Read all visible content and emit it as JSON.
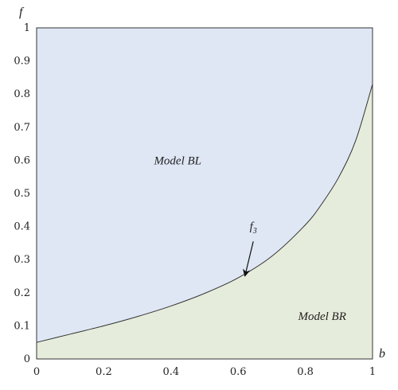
{
  "chart_data": {
    "type": "area",
    "x_var": "b",
    "y_var": "f",
    "xlim": [
      0,
      1
    ],
    "ylim": [
      0,
      1
    ],
    "x_ticks": [
      "0",
      "0.2",
      "0.4",
      "0.6",
      "0.8",
      "1"
    ],
    "y_ticks": [
      "0",
      "0.1",
      "0.2",
      "0.3",
      "0.4",
      "0.5",
      "0.6",
      "0.7",
      "0.8",
      "0.9",
      "1"
    ],
    "boundary": {
      "x": [
        0,
        0.1,
        0.2,
        0.3,
        0.4,
        0.5,
        0.6,
        0.7,
        0.8,
        0.85,
        0.9,
        0.95,
        1.0
      ],
      "y": [
        0.05,
        0.075,
        0.1,
        0.128,
        0.16,
        0.198,
        0.245,
        0.31,
        0.405,
        0.47,
        0.55,
        0.66,
        0.83
      ]
    },
    "regions": [
      {
        "label": "Model BL",
        "position": "above-curve",
        "color": "#dfe7f5",
        "label_at": {
          "x": 0.42,
          "y": 0.6
        }
      },
      {
        "label": "Model BR",
        "position": "below-curve",
        "color": "#e6ecdb",
        "label_at": {
          "x": 0.85,
          "y": 0.13
        }
      }
    ],
    "annotation": {
      "label": "f",
      "subscript": "3",
      "text_at": {
        "x": 0.645,
        "y": 0.39
      },
      "arrow_from": {
        "x": 0.645,
        "y": 0.355
      },
      "arrow_to": {
        "x": 0.62,
        "y": 0.25
      }
    },
    "grid": false
  }
}
